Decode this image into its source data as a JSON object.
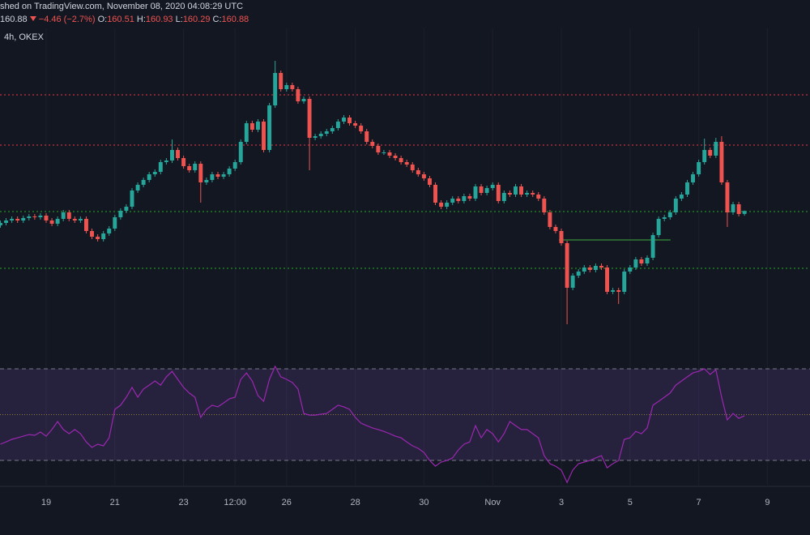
{
  "header": {
    "published": "shed on TradingView.com, November 08, 2020 04:08:29 UTC",
    "change": "−4.46 (−2.7%)",
    "ohlc_keys": [
      "O:",
      "H:",
      "L:",
      "C:"
    ],
    "interval": "4h, OKEX"
  },
  "chart_data": {
    "type": "candlestick",
    "up_color": "#26a69a",
    "down_color": "#ef5350",
    "xlim": [
      17.656,
      41.24
    ],
    "ylim": [
      142.9,
      183.4
    ],
    "xticks": [
      19,
      21,
      23,
      {
        "value": 24.5,
        "label": "12:00"
      },
      26,
      28,
      30,
      {
        "value": 32,
        "label": "Nov"
      },
      {
        "value": 34,
        "label": "3"
      },
      {
        "value": 36,
        "label": "5"
      },
      {
        "value": 38,
        "label": "7"
      },
      {
        "value": 40,
        "label": "9"
      }
    ],
    "grid": true,
    "x": [
      17.667,
      17.833,
      18,
      18.167,
      18.333,
      18.5,
      18.667,
      18.833,
      19,
      19.167,
      19.333,
      19.5,
      19.667,
      19.833,
      20,
      20.167,
      20.333,
      20.5,
      20.667,
      20.833,
      21,
      21.167,
      21.333,
      21.5,
      21.667,
      21.833,
      22,
      22.167,
      22.333,
      22.5,
      22.667,
      22.833,
      23,
      23.167,
      23.333,
      23.5,
      23.667,
      23.833,
      24,
      24.167,
      24.333,
      24.5,
      24.667,
      24.833,
      25,
      25.167,
      25.333,
      25.5,
      25.667,
      25.833,
      26,
      26.167,
      26.333,
      26.5,
      26.667,
      26.833,
      27,
      27.167,
      27.333,
      27.5,
      27.667,
      27.833,
      28,
      28.167,
      28.333,
      28.5,
      28.667,
      28.833,
      29,
      29.167,
      29.333,
      29.5,
      29.667,
      29.833,
      30,
      30.167,
      30.333,
      30.5,
      30.667,
      30.833,
      31,
      31.167,
      31.333,
      31.5,
      31.667,
      31.833,
      32,
      32.167,
      32.333,
      32.5,
      32.667,
      32.833,
      33,
      33.167,
      33.333,
      33.5,
      33.667,
      33.833,
      34,
      34.167,
      34.333,
      34.5,
      34.667,
      34.833,
      35,
      35.167,
      35.333,
      35.5,
      35.667,
      35.833,
      36,
      36.167,
      36.333,
      36.5,
      36.667,
      36.833,
      37,
      37.167,
      37.333,
      37.5,
      37.667,
      37.833,
      38,
      38.167,
      38.333,
      38.5,
      38.667,
      38.833,
      39,
      39.167,
      39.333
    ],
    "open": [
      159.1,
      159.4,
      159.7,
      159.9,
      159.7,
      160.0,
      160.2,
      160.1,
      160.3,
      159.7,
      159.3,
      159.9,
      160.7,
      159.9,
      159.7,
      159.9,
      158.4,
      157.7,
      157.4,
      158.1,
      158.7,
      160.1,
      160.9,
      161.4,
      163.4,
      164.1,
      164.7,
      165.4,
      165.7,
      166.9,
      167.1,
      168.4,
      167.4,
      166.4,
      165.9,
      166.7,
      164.4,
      164.7,
      165.4,
      165.1,
      165.4,
      166.1,
      166.9,
      169.4,
      171.7,
      170.9,
      171.9,
      168.4,
      173.9,
      177.9,
      175.9,
      176.4,
      175.9,
      174.4,
      174.7,
      169.9,
      170.1,
      170.4,
      170.7,
      171.1,
      171.9,
      172.4,
      171.7,
      171.4,
      170.7,
      169.4,
      168.9,
      168.1,
      168.1,
      167.7,
      167.4,
      166.9,
      166.6,
      165.9,
      165.4,
      164.9,
      164.1,
      161.9,
      161.4,
      161.9,
      162.4,
      162.1,
      162.7,
      162.4,
      163.9,
      163.1,
      163.7,
      164.1,
      162.1,
      163.1,
      162.9,
      163.9,
      162.9,
      163.1,
      162.9,
      162.4,
      160.7,
      158.9,
      158.4,
      156.9,
      151.4,
      152.9,
      153.4,
      153.9,
      153.6,
      154.1,
      153.9,
      150.9,
      151.1,
      150.9,
      153.4,
      153.9,
      154.9,
      154.4,
      155.1,
      157.9,
      159.9,
      160.1,
      160.7,
      162.4,
      162.9,
      164.4,
      165.4,
      166.9,
      168.4,
      167.7,
      169.4,
      164.4,
      160.7,
      161.7,
      160.51
    ],
    "high": [
      159.7,
      160.0,
      160.2,
      160.2,
      160.3,
      160.5,
      160.5,
      160.6,
      160.6,
      160.0,
      160.2,
      161.0,
      161.0,
      160.2,
      160.2,
      160.2,
      158.7,
      158.0,
      158.4,
      159.0,
      160.4,
      161.2,
      161.7,
      163.7,
      164.4,
      165.0,
      165.7,
      166.0,
      167.2,
      167.4,
      169.7,
      168.7,
      167.7,
      166.7,
      167.0,
      167.0,
      165.0,
      165.7,
      165.7,
      165.7,
      166.4,
      167.2,
      169.7,
      172.0,
      172.0,
      172.2,
      172.2,
      174.2,
      179.4,
      178.2,
      176.7,
      176.7,
      176.2,
      175.0,
      175.0,
      170.4,
      170.7,
      171.0,
      171.4,
      172.2,
      172.7,
      172.7,
      172.0,
      171.7,
      171.0,
      169.7,
      169.2,
      168.4,
      168.4,
      168.0,
      167.7,
      167.2,
      166.9,
      166.2,
      165.7,
      165.2,
      164.4,
      162.2,
      162.2,
      162.7,
      162.7,
      163.0,
      163.0,
      164.2,
      164.2,
      164.0,
      164.4,
      164.4,
      163.4,
      163.4,
      164.2,
      164.2,
      163.4,
      163.4,
      163.2,
      162.7,
      161.0,
      159.2,
      158.7,
      157.2,
      153.2,
      153.7,
      154.2,
      154.2,
      154.4,
      154.4,
      154.2,
      151.4,
      151.4,
      153.7,
      154.2,
      155.2,
      155.2,
      155.4,
      158.2,
      160.2,
      160.4,
      161.0,
      162.7,
      163.2,
      164.7,
      165.7,
      167.2,
      169.8,
      168.7,
      169.9,
      170.1,
      164.7,
      162.0,
      162.0,
      160.93
    ],
    "low": [
      158.8,
      159.1,
      159.4,
      159.4,
      159.4,
      159.7,
      159.8,
      159.8,
      159.4,
      159.0,
      159.0,
      159.6,
      159.6,
      159.4,
      159.4,
      158.1,
      157.4,
      157.1,
      157.1,
      157.8,
      158.4,
      159.8,
      160.6,
      161.1,
      163.1,
      163.8,
      164.4,
      165.1,
      165.4,
      166.6,
      166.8,
      167.1,
      166.1,
      165.6,
      165.6,
      161.9,
      164.1,
      164.4,
      164.8,
      164.8,
      165.1,
      165.8,
      166.6,
      169.1,
      170.6,
      170.6,
      168.1,
      168.1,
      173.6,
      175.6,
      175.6,
      175.6,
      174.1,
      174.1,
      165.9,
      169.6,
      169.8,
      170.1,
      170.4,
      170.8,
      171.6,
      171.4,
      171.1,
      170.4,
      169.1,
      168.6,
      167.8,
      167.8,
      167.4,
      167.1,
      166.6,
      166.3,
      165.6,
      165.1,
      164.6,
      163.8,
      161.6,
      161.1,
      161.1,
      161.6,
      161.8,
      161.8,
      162.1,
      162.1,
      162.8,
      162.8,
      163.4,
      161.8,
      161.8,
      162.6,
      162.6,
      162.6,
      162.6,
      162.6,
      162.1,
      160.4,
      158.6,
      158.1,
      156.6,
      146.9,
      151.1,
      152.6,
      153.1,
      153.3,
      153.3,
      153.6,
      150.6,
      150.6,
      149.4,
      150.6,
      153.1,
      153.6,
      154.1,
      154.1,
      154.8,
      157.6,
      159.6,
      159.8,
      160.4,
      162.1,
      162.6,
      164.1,
      165.1,
      166.6,
      167.4,
      167.4,
      164.1,
      158.9,
      160.4,
      160.2,
      160.29
    ],
    "close": [
      159.4,
      159.7,
      159.9,
      159.7,
      160.0,
      160.2,
      160.1,
      160.3,
      159.7,
      159.3,
      159.9,
      160.7,
      159.9,
      159.7,
      159.9,
      158.4,
      157.7,
      157.4,
      158.1,
      158.7,
      160.1,
      160.9,
      161.4,
      163.4,
      164.1,
      164.7,
      165.4,
      165.7,
      166.9,
      167.1,
      168.4,
      167.4,
      166.4,
      165.9,
      166.7,
      164.4,
      164.7,
      165.4,
      165.1,
      165.4,
      166.1,
      166.9,
      169.4,
      171.7,
      170.9,
      171.9,
      168.4,
      173.9,
      177.9,
      175.9,
      176.4,
      175.9,
      174.4,
      174.7,
      169.9,
      170.1,
      170.4,
      170.7,
      171.1,
      171.9,
      172.4,
      171.7,
      171.4,
      170.7,
      169.4,
      168.9,
      168.1,
      168.1,
      167.7,
      167.4,
      166.9,
      166.6,
      165.9,
      165.4,
      164.9,
      164.1,
      161.9,
      161.4,
      161.9,
      162.4,
      162.1,
      162.7,
      162.4,
      163.9,
      163.1,
      163.7,
      164.1,
      162.1,
      163.1,
      162.9,
      163.9,
      162.9,
      163.1,
      162.9,
      162.4,
      160.7,
      158.9,
      158.4,
      156.9,
      151.4,
      152.9,
      153.4,
      153.9,
      153.6,
      154.1,
      153.9,
      150.9,
      151.1,
      150.9,
      153.4,
      153.9,
      154.9,
      154.4,
      155.1,
      157.9,
      159.9,
      160.1,
      160.7,
      162.4,
      162.9,
      164.4,
      165.4,
      166.9,
      168.4,
      167.7,
      169.4,
      164.4,
      160.7,
      161.7,
      160.5,
      160.88
    ],
    "levels": [
      {
        "value": 175.2,
        "color": "#f23645"
      },
      {
        "value": 169.0,
        "color": "#f23645"
      },
      {
        "value": 160.8,
        "color": "#22ab22"
      },
      {
        "value": 153.8,
        "color": "#22ab22"
      }
    ],
    "segments": [
      {
        "value": 157.3,
        "x": [
          33.93,
          37.18
        ],
        "color": "#2e7d32"
      }
    ],
    "rsi": {
      "ylim": [
        18.7,
        75.3
      ],
      "bands": [
        70,
        30
      ],
      "mid": 50,
      "color": "#9c27b0",
      "band_color": "#7e57c2",
      "values": [
        37.1,
        38.1,
        39.2,
        39.9,
        40.6,
        41.3,
        41.0,
        42.4,
        40.6,
        43.5,
        47.0,
        43.5,
        41.7,
        43.5,
        41.7,
        38.1,
        35.7,
        37.1,
        36.4,
        39.9,
        52.3,
        54.1,
        57.6,
        61.9,
        57.6,
        61.2,
        62.9,
        64.7,
        62.9,
        66.5,
        68.9,
        65.4,
        61.9,
        59.4,
        57.6,
        48.8,
        52.3,
        54.1,
        53.4,
        55.1,
        56.9,
        57.6,
        65.4,
        68.2,
        64.7,
        58.3,
        55.8,
        65.4,
        71.1,
        66.5,
        65.4,
        64.0,
        61.2,
        50.5,
        49.8,
        49.8,
        50.2,
        50.5,
        52.3,
        54.1,
        53.4,
        52.3,
        48.8,
        46.3,
        45.2,
        44.2,
        43.5,
        42.7,
        41.7,
        40.6,
        39.9,
        38.1,
        36.4,
        35.3,
        33.5,
        30.0,
        27.5,
        29.3,
        30.0,
        31.1,
        34.6,
        37.1,
        38.1,
        45.2,
        39.9,
        43.5,
        41.7,
        38.1,
        41.7,
        47.0,
        45.2,
        43.5,
        43.5,
        41.7,
        39.9,
        32.1,
        28.6,
        27.5,
        25.8,
        20.4,
        25.8,
        28.6,
        29.3,
        30.0,
        31.1,
        32.1,
        26.8,
        28.6,
        30.0,
        39.2,
        39.9,
        42.7,
        41.7,
        44.2,
        54.1,
        55.8,
        57.6,
        59.4,
        62.9,
        64.7,
        66.5,
        68.2,
        68.9,
        70.0,
        67.5,
        69.6,
        57.6,
        47.7,
        50.5,
        48.4,
        49.5
      ]
    }
  }
}
